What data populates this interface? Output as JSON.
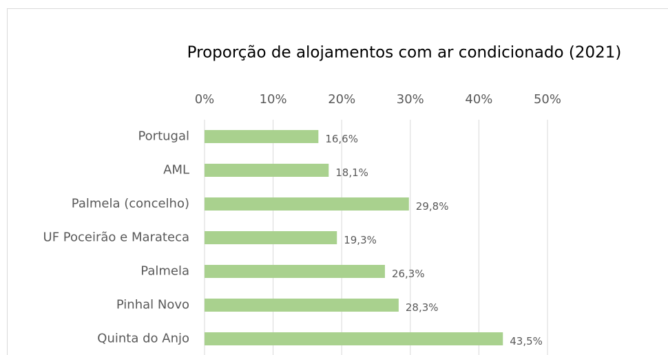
{
  "chart_data": {
    "type": "barh",
    "title": "Proporção de alojamentos com ar condicionado (2021)",
    "categories": [
      "Portugal",
      "AML",
      "Palmela (concelho)",
      "UF Poceirão e Marateca",
      "Palmela",
      "Pinhal Novo",
      "Quinta do Anjo"
    ],
    "values": [
      16.6,
      18.1,
      29.8,
      19.3,
      26.3,
      28.3,
      43.5
    ],
    "value_labels": [
      "16,6%",
      "18,1%",
      "29,8%",
      "19,3%",
      "26,3%",
      "28,3%",
      "43,5%"
    ],
    "color": "#a9d18e",
    "xlim": [
      0,
      50
    ],
    "xticks": [
      {
        "value": 0,
        "label": "0%"
      },
      {
        "value": 10,
        "label": "10%"
      },
      {
        "value": 20,
        "label": "20%"
      },
      {
        "value": 30,
        "label": "30%"
      },
      {
        "value": 40,
        "label": "40%"
      },
      {
        "value": 50,
        "label": "50%"
      }
    ],
    "grid": true
  }
}
